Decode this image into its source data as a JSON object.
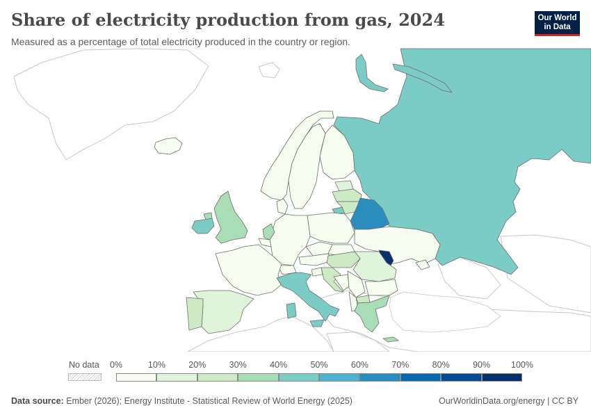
{
  "header": {
    "title": "Share of electricity production from gas, 2024",
    "subtitle": "Measured as a percentage of total electricity produced in the country or region.",
    "logo_line1": "Our World",
    "logo_line2": "in Data"
  },
  "legend": {
    "no_data_label": "No data",
    "ticks": [
      "0%",
      "10%",
      "20%",
      "30%",
      "40%",
      "50%",
      "60%",
      "70%",
      "80%",
      "90%",
      "100%"
    ],
    "colors": [
      "#f7fcf0",
      "#e0f3db",
      "#ccebc5",
      "#a8ddb5",
      "#7bccc4",
      "#4eb3d3",
      "#2b8cbe",
      "#0868ac",
      "#084a91",
      "#08306b"
    ]
  },
  "footer": {
    "source_label": "Data source:",
    "source_text": "Ember (2026); Energy Institute - Statistical Review of World Energy (2025)",
    "url": "OurWorldinData.org/energy | CC BY"
  },
  "map_data": {
    "unit": "%",
    "regions": [
      {
        "name": "Russia",
        "icon": "russia-region",
        "share": 45
      },
      {
        "name": "Belarus",
        "icon": "belarus-region",
        "share": 62
      },
      {
        "name": "Moldova",
        "icon": "moldova-region",
        "share": 90
      },
      {
        "name": "Ireland",
        "icon": "ireland-region",
        "share": 45
      },
      {
        "name": "United Kingdom",
        "icon": "uk-region",
        "share": 32
      },
      {
        "name": "Netherlands",
        "icon": "netherlands-region",
        "share": 35
      },
      {
        "name": "Italy",
        "icon": "italy-region",
        "share": 45
      },
      {
        "name": "Spain",
        "icon": "spain-region",
        "share": 16
      },
      {
        "name": "Portugal",
        "icon": "portugal-region",
        "share": 18
      },
      {
        "name": "Greece",
        "icon": "greece-region",
        "share": 38
      },
      {
        "name": "Hungary",
        "icon": "hungary-region",
        "share": 22
      },
      {
        "name": "Romania",
        "icon": "romania-region",
        "share": 16
      },
      {
        "name": "Croatia",
        "icon": "croatia-region",
        "share": 22
      },
      {
        "name": "Latvia",
        "icon": "latvia-region",
        "share": 25
      },
      {
        "name": "Lithuania",
        "icon": "lithuania-region",
        "share": 20
      },
      {
        "name": "Germany",
        "icon": "germany-region",
        "share": 14
      },
      {
        "name": "Poland",
        "icon": "poland-region",
        "share": 11
      },
      {
        "name": "France",
        "icon": "france-region",
        "share": 3
      },
      {
        "name": "Norway",
        "icon": "norway-region",
        "share": 1
      },
      {
        "name": "Sweden",
        "icon": "sweden-region",
        "share": 1
      },
      {
        "name": "Finland",
        "icon": "finland-region",
        "share": 4
      },
      {
        "name": "Ukraine",
        "icon": "ukraine-region",
        "share": 8
      },
      {
        "name": "Bulgaria",
        "icon": "bulgaria-region",
        "share": 7
      },
      {
        "name": "Iceland",
        "icon": "iceland-region",
        "share": 0
      }
    ]
  }
}
